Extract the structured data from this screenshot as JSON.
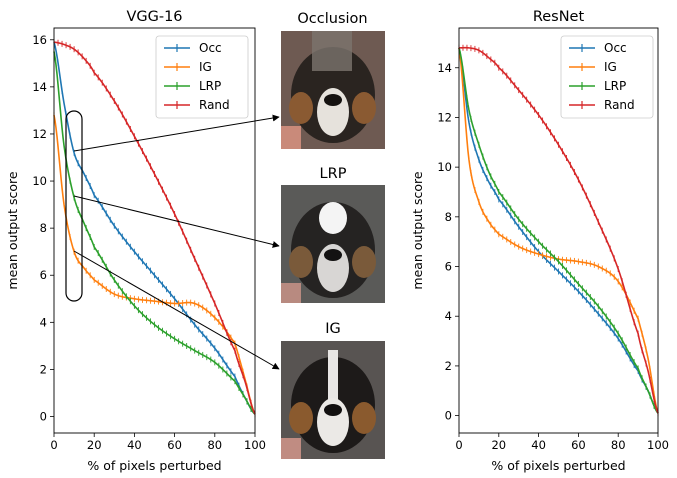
{
  "colors": {
    "Occ": "#1f77b4",
    "IG": "#ff7f0e",
    "LRP": "#2ca02c",
    "Rand": "#d62728"
  },
  "chart_data": [
    {
      "type": "line",
      "title": "VGG-16",
      "xlabel": "% of pixels perturbed",
      "ylabel": "mean output score",
      "xlim": [
        0,
        100
      ],
      "ylim": [
        -0.7,
        16.5
      ],
      "xticks": [
        "0",
        "20",
        "40",
        "60",
        "80",
        "100"
      ],
      "yticks": [
        "0",
        "2",
        "4",
        "6",
        "8",
        "10",
        "12",
        "14",
        "16"
      ],
      "legend": "top-right",
      "grid": false,
      "x": [
        0,
        5,
        10,
        15,
        20,
        30,
        40,
        50,
        60,
        70,
        80,
        90,
        95,
        100
      ],
      "series": [
        {
          "name": "Occ",
          "values": [
            15.9,
            13.3,
            11.2,
            10.3,
            9.4,
            8.1,
            7.0,
            6.0,
            5.0,
            3.9,
            2.9,
            1.7,
            0.8,
            0.1
          ]
        },
        {
          "name": "IG",
          "values": [
            12.8,
            9.0,
            7.0,
            6.3,
            5.8,
            5.2,
            5.0,
            4.9,
            4.8,
            4.8,
            4.2,
            3.1,
            1.6,
            0.1
          ]
        },
        {
          "name": "LRP",
          "values": [
            15.5,
            11.5,
            9.3,
            8.2,
            7.2,
            5.8,
            4.7,
            3.9,
            3.3,
            2.8,
            2.3,
            1.5,
            0.8,
            0.1
          ]
        },
        {
          "name": "Rand",
          "values": [
            15.9,
            15.8,
            15.6,
            15.2,
            14.6,
            13.4,
            11.9,
            10.3,
            8.6,
            6.7,
            4.8,
            2.8,
            1.5,
            0.1
          ]
        }
      ]
    },
    {
      "type": "line",
      "title": "ResNet",
      "xlabel": "% of pixels perturbed",
      "ylabel": "mean output score",
      "xlim": [
        0,
        100
      ],
      "ylim": [
        -0.7,
        15.6
      ],
      "xticks": [
        "0",
        "20",
        "40",
        "60",
        "80",
        "100"
      ],
      "yticks": [
        "0",
        "2",
        "4",
        "6",
        "8",
        "10",
        "12",
        "14"
      ],
      "legend": "top-right",
      "grid": false,
      "x": [
        0,
        5,
        10,
        15,
        20,
        30,
        40,
        50,
        60,
        70,
        80,
        90,
        95,
        100
      ],
      "series": [
        {
          "name": "Occ",
          "values": [
            14.8,
            11.8,
            10.3,
            9.4,
            8.7,
            7.6,
            6.6,
            5.8,
            5.0,
            4.1,
            3.1,
            1.8,
            1.0,
            0.1
          ]
        },
        {
          "name": "IG",
          "values": [
            14.8,
            10.3,
            8.6,
            7.8,
            7.3,
            6.8,
            6.5,
            6.3,
            6.2,
            6.0,
            5.4,
            3.9,
            2.3,
            0.1
          ]
        },
        {
          "name": "LRP",
          "values": [
            14.8,
            12.3,
            10.9,
            9.8,
            9.0,
            7.9,
            7.0,
            6.2,
            5.3,
            4.4,
            3.3,
            1.9,
            1.0,
            0.1
          ]
        },
        {
          "name": "Rand",
          "values": [
            14.8,
            14.8,
            14.7,
            14.4,
            14.0,
            13.1,
            12.1,
            10.9,
            9.5,
            7.8,
            5.9,
            3.3,
            1.8,
            0.1
          ]
        }
      ]
    }
  ],
  "panels": [
    {
      "title": "Occlusion"
    },
    {
      "title": "LRP"
    },
    {
      "title": "IG"
    }
  ]
}
